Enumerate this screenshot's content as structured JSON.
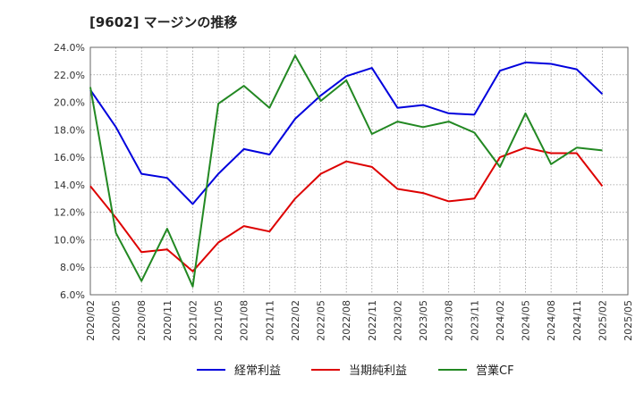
{
  "chart_data": {
    "type": "line",
    "title": "[9602]  マージンの推移",
    "xlabel": "",
    "ylabel": "",
    "ylim": [
      6.0,
      24.0
    ],
    "ytick_step": 2.0,
    "grid": true,
    "legend_position": "bottom",
    "x": [
      "2020/02",
      "2020/05",
      "2020/08",
      "2020/11",
      "2021/02",
      "2021/05",
      "2021/08",
      "2021/11",
      "2022/02",
      "2022/05",
      "2022/08",
      "2022/11",
      "2023/02",
      "2023/05",
      "2023/08",
      "2023/11",
      "2024/02",
      "2024/05",
      "2024/08",
      "2024/11",
      "2025/02",
      "2025/05"
    ],
    "series": [
      {
        "name": "経常利益",
        "color": "#0000dd",
        "values": [
          20.9,
          18.2,
          14.8,
          14.5,
          12.6,
          14.8,
          16.6,
          16.2,
          18.8,
          20.5,
          21.9,
          22.5,
          19.6,
          19.8,
          19.2,
          19.1,
          22.3,
          22.9,
          22.8,
          22.4,
          20.6,
          null
        ]
      },
      {
        "name": "当期純利益",
        "color": "#dd0000",
        "values": [
          13.9,
          11.6,
          9.1,
          9.3,
          7.7,
          9.8,
          11.0,
          10.6,
          13.0,
          14.8,
          15.7,
          15.3,
          13.7,
          13.4,
          12.8,
          13.0,
          16.0,
          16.7,
          16.3,
          16.3,
          13.9,
          null
        ]
      },
      {
        "name": "営業CF",
        "color": "#228822",
        "values": [
          21.1,
          10.5,
          7.0,
          10.8,
          6.6,
          19.9,
          21.2,
          19.6,
          23.4,
          20.1,
          21.6,
          17.7,
          18.6,
          18.2,
          18.6,
          17.8,
          15.3,
          19.2,
          15.5,
          16.7,
          16.5,
          null
        ]
      }
    ]
  }
}
